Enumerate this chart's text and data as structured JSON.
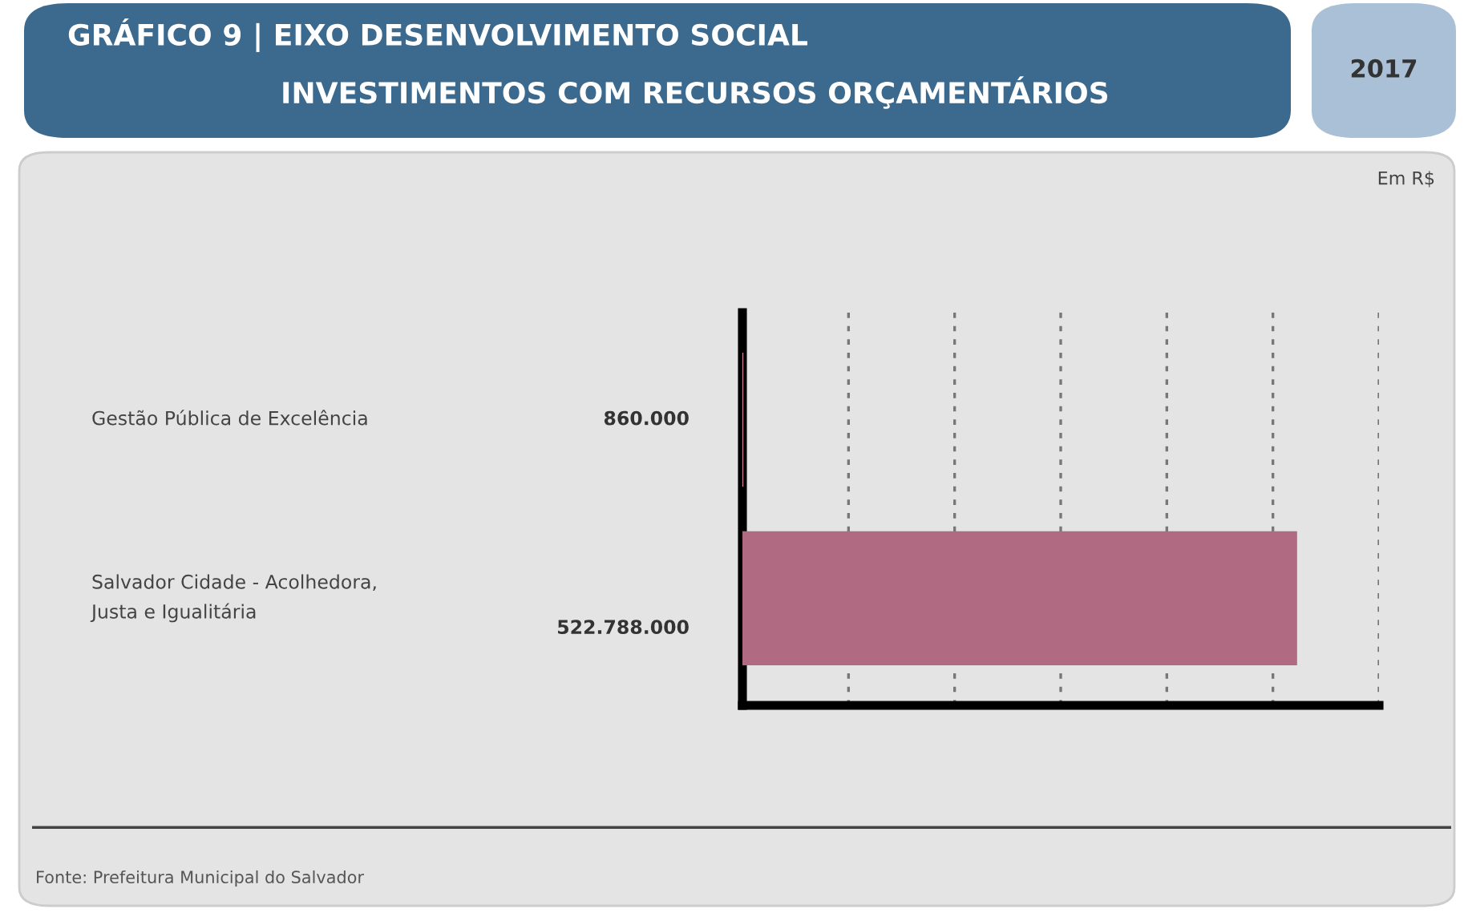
{
  "chart_data": {
    "type": "bar",
    "orientation": "horizontal",
    "title": "GRÁFICO 9 | EIXO DESENVOLVIMENTO SOCIAL",
    "subtitle": "INVESTIMENTOS COM RECURSOS ORÇAMENTÁRIOS",
    "annotations": [
      "2017",
      "Em R$",
      "Fonte: Prefeitura Municipal do Salvador"
    ],
    "categories": [
      "Gestão Pública de Excelência",
      "Salvador Cidade - Acolhedora,\nJusta e Igualitária"
    ],
    "values": [
      860000,
      522788000
    ],
    "value_labels": [
      "860.000",
      "522.788.000"
    ],
    "colors": [
      "#d98c9c",
      "#b06b82"
    ],
    "xlim": [
      0,
      600000000
    ],
    "xticks": [
      {
        "value": 100000000,
        "label": null
      },
      {
        "value": 200000000,
        "label": null
      },
      {
        "value": 300000000,
        "label": null
      },
      {
        "value": 400000000,
        "label": null
      },
      {
        "value": 500000000,
        "label": null
      },
      {
        "value": 600000000,
        "label": null
      }
    ],
    "grid": "x"
  }
}
